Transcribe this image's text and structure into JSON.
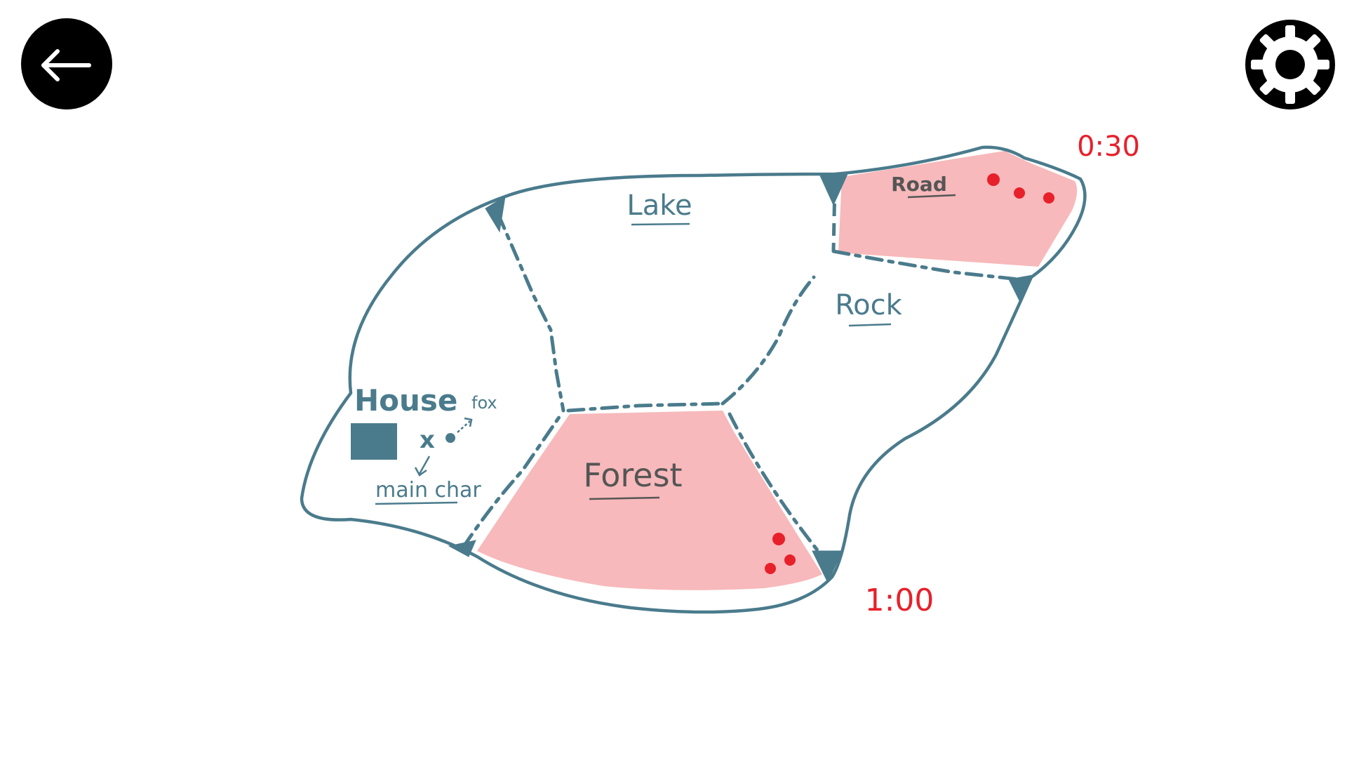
{
  "navigation": {
    "back_icon": "arrow-left-icon",
    "settings_icon": "gear-icon"
  },
  "map": {
    "regions": [
      {
        "id": "lake",
        "label": "Lake"
      },
      {
        "id": "road",
        "label": "Road"
      },
      {
        "id": "rock",
        "label": "Rock"
      },
      {
        "id": "forest",
        "label": "Forest"
      },
      {
        "id": "house",
        "label": "House"
      }
    ],
    "house_area": {
      "main_char_label": "main char",
      "fox_label": "fox"
    },
    "timers": {
      "road": "0:30",
      "forest": "1:00"
    }
  },
  "colors": {
    "outline": "#4a7b8c",
    "danger_zone": "#f7b9bb",
    "timer": "#e8202a",
    "enemy_dot": "#e8202a"
  }
}
